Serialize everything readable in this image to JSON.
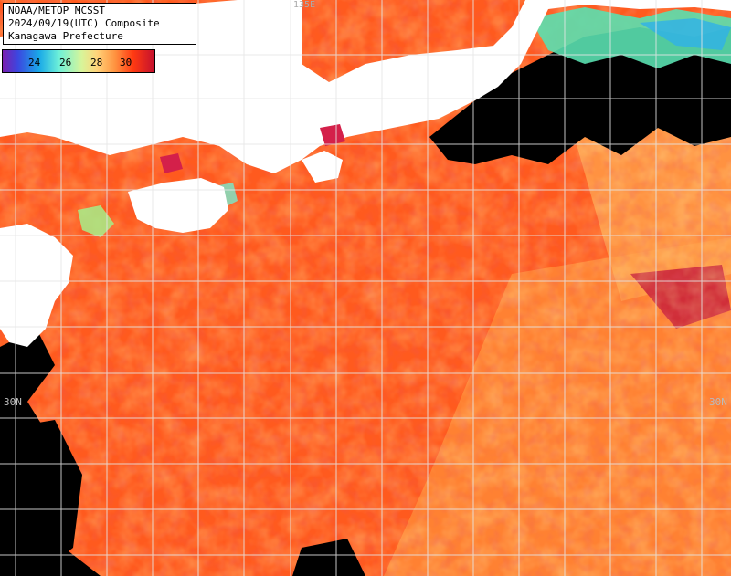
{
  "header": {
    "line1": "NOAA/METOP MCSST",
    "line2": "2024/09/19(UTC) Composite",
    "line3": "Kanagawa Prefecture"
  },
  "legend": {
    "ticks": [
      "24",
      "26",
      "28",
      "30"
    ]
  },
  "grid": {
    "lat_label_left": "30N",
    "lat_label_right": "30N",
    "lon_label_top": "135E"
  },
  "colors": {
    "land": "#ffffff",
    "cloud_mask": "#000000",
    "warm_sea": "#ff5a1e",
    "cool_sea": "#ffb060",
    "hot_sea": "#d61e32",
    "grid": "#e6e6e6"
  }
}
